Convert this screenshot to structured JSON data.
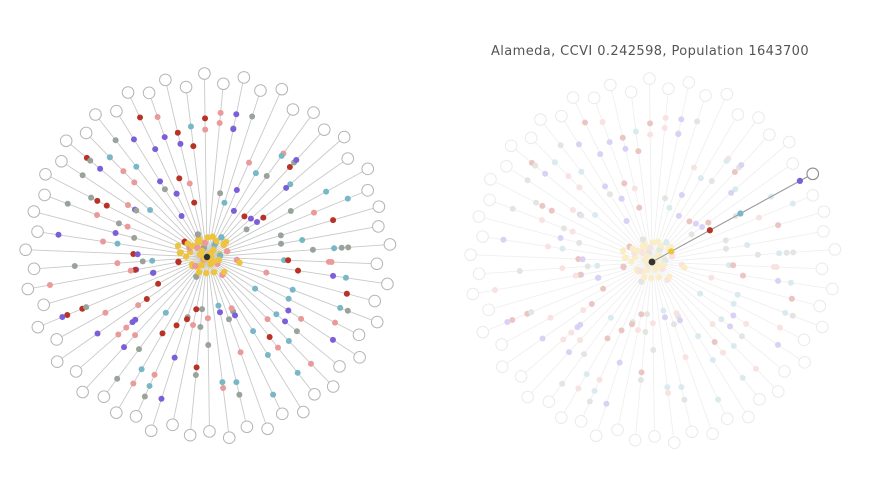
{
  "selection": {
    "county": "Alameda",
    "ccvi_label": "CCVI",
    "ccvi_value": "0.242598",
    "population_label": "Population",
    "population_value": "1643700",
    "title": "Alameda, CCVI 0.242598, Population 1643700"
  },
  "colors": {
    "background": "#ffffff",
    "link": "#c9c9c9",
    "outer_node_stroke": "#b5b5b5",
    "outer_node_fill": "#ffffff",
    "highlight_link": "#9a9a9a",
    "center_node": "#333333",
    "categories": [
      "#7b5fd9",
      "#78b8c6",
      "#ea9a9a",
      "#b83225",
      "#9aa39a",
      "#eec43f"
    ]
  },
  "chart_data": {
    "type": "radial-network",
    "layout": "two panels side by side; left full opacity, right faded with one highlighted spoke",
    "panels": [
      {
        "name": "overview",
        "highlighted": false
      },
      {
        "name": "focus",
        "highlighted": true,
        "label": "Alameda, CCVI 0.242598, Population 1643700"
      }
    ],
    "spoke_count": 58,
    "node_categories": 6,
    "highlighted_spoke_index": 53
  }
}
